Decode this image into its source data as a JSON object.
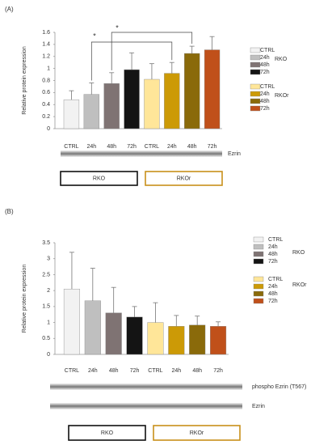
{
  "chart_data": [
    {
      "type": "bar",
      "panel": "(A)",
      "y_label": "Relative protein expression",
      "ylim": [
        0,
        1.6
      ],
      "yticks": [
        0,
        0.2,
        0.4,
        0.6,
        0.8,
        1,
        1.2,
        1.4,
        1.6
      ],
      "groups": [
        {
          "name": "RKO",
          "labels": [
            "CTRL",
            "24h",
            "48h",
            "72h"
          ],
          "colors": [
            "#f2f2f2",
            "#bfbfbf",
            "#7f7373",
            "#141414"
          ],
          "values": [
            0.48,
            0.57,
            0.75,
            0.98
          ],
          "errors": [
            0.15,
            0.19,
            0.18,
            0.28
          ]
        },
        {
          "name": "RKOr",
          "labels": [
            "CTRL",
            "24h",
            "48h",
            "72h"
          ],
          "colors": [
            "#ffe699",
            "#cc9a06",
            "#8a6a0a",
            "#c0501a"
          ],
          "values": [
            0.82,
            0.92,
            1.25,
            1.31
          ],
          "errors": [
            0.26,
            0.18,
            0.12,
            0.22
          ]
        }
      ],
      "annotations": [
        "*",
        "*"
      ],
      "blot_labels": [
        "Ezrin"
      ]
    },
    {
      "type": "bar",
      "panel": "(B)",
      "y_label": "Relative protein expression",
      "ylim": [
        0,
        3.5
      ],
      "yticks": [
        0,
        0.5,
        1,
        1.5,
        2,
        2.5,
        3,
        3.5
      ],
      "groups": [
        {
          "name": "RKO",
          "labels": [
            "CTRL",
            "24h",
            "48h",
            "72h"
          ],
          "colors": [
            "#f2f2f2",
            "#bfbfbf",
            "#7f7373",
            "#141414"
          ],
          "values": [
            2.05,
            1.68,
            1.3,
            1.17
          ],
          "errors": [
            1.15,
            1.02,
            0.8,
            0.33
          ]
        },
        {
          "name": "RKOr",
          "labels": [
            "CTRL",
            "24h",
            "48h",
            "72h"
          ],
          "colors": [
            "#ffe699",
            "#cc9a06",
            "#8a6a0a",
            "#c0501a"
          ],
          "values": [
            1.0,
            0.88,
            0.92,
            0.88
          ],
          "errors": [
            0.62,
            0.34,
            0.28,
            0.14
          ]
        }
      ],
      "annotations": [],
      "blot_labels": [
        "phospho Ezrin (T567)",
        "Ezrin"
      ]
    }
  ]
}
